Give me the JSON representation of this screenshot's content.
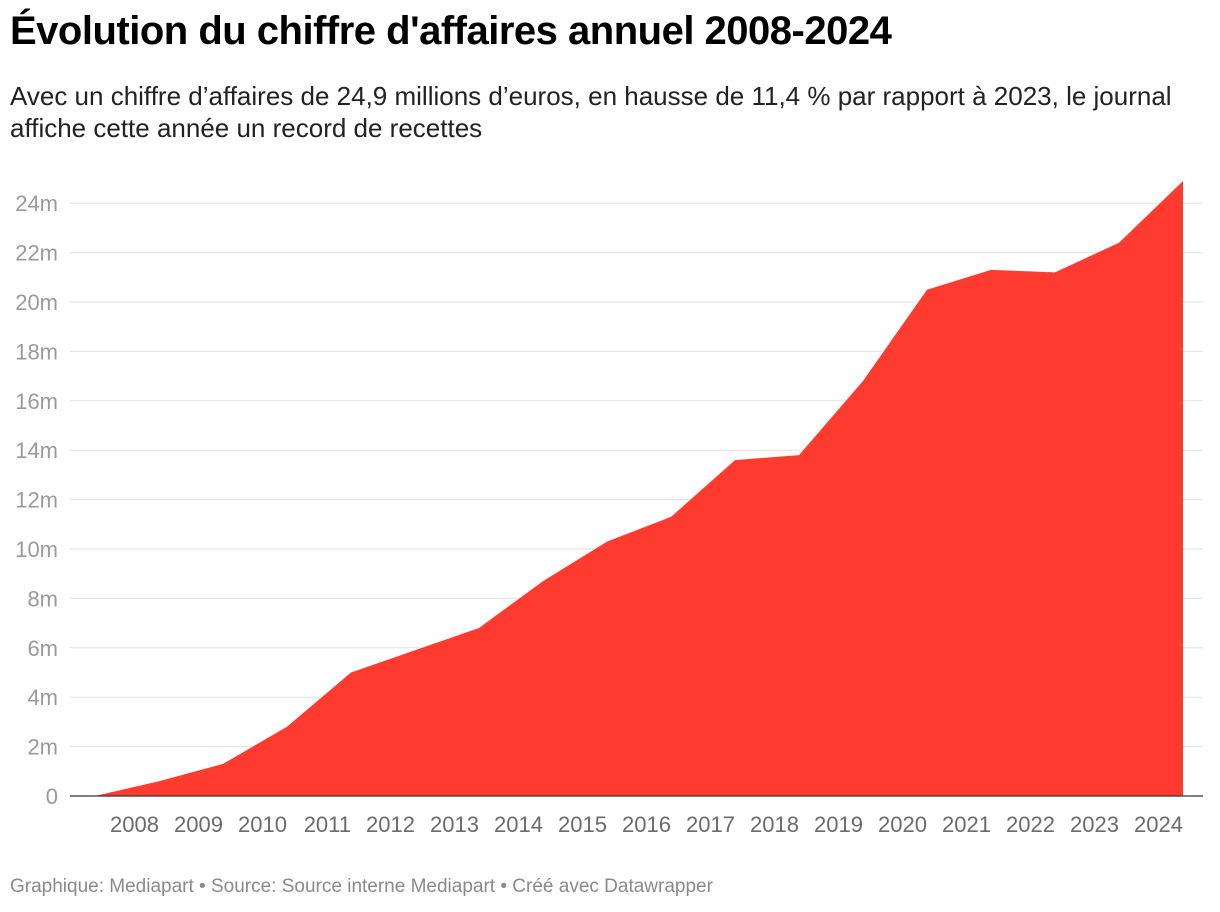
{
  "header": {
    "title": "Évolution du chiffre d'affaires annuel 2008-2024",
    "subtitle": "Avec un chiffre d’affaires de 24,9 millions d’euros, en hausse de 11,4 % par rapport à 2023, le journal affiche cette année un record de recettes"
  },
  "footer": {
    "credits": "Graphique: Mediapart • Source: Source interne Mediapart • Créé avec Datawrapper"
  },
  "colors": {
    "area": "#ff3b2f",
    "grid": "#e2e2e2"
  },
  "chart_data": {
    "type": "area",
    "title": "Évolution du chiffre d'affaires annuel 2008-2024",
    "xlabel": "",
    "ylabel": "",
    "x": [
      2007,
      2008,
      2009,
      2010,
      2011,
      2012,
      2013,
      2014,
      2015,
      2016,
      2017,
      2018,
      2019,
      2020,
      2021,
      2022,
      2023,
      2024
    ],
    "values": [
      0,
      0.6,
      1.3,
      2.8,
      5.0,
      5.9,
      6.8,
      8.7,
      10.3,
      11.3,
      13.6,
      13.8,
      16.8,
      20.5,
      21.3,
      21.2,
      22.4,
      24.9
    ],
    "x_tick_labels": [
      "2008",
      "2009",
      "2010",
      "2011",
      "2012",
      "2013",
      "2014",
      "2015",
      "2016",
      "2017",
      "2018",
      "2019",
      "2020",
      "2021",
      "2022",
      "2023",
      "2024"
    ],
    "y_ticks": [
      0,
      2,
      4,
      6,
      8,
      10,
      12,
      14,
      16,
      18,
      20,
      22,
      24
    ],
    "y_tick_labels": [
      "0",
      "2m",
      "4m",
      "6m",
      "8m",
      "10m",
      "12m",
      "14m",
      "16m",
      "18m",
      "20m",
      "22m",
      "24m"
    ],
    "ylim": [
      0,
      24.9
    ],
    "unit": "millions d'euros",
    "grid": true,
    "legend": "none"
  }
}
